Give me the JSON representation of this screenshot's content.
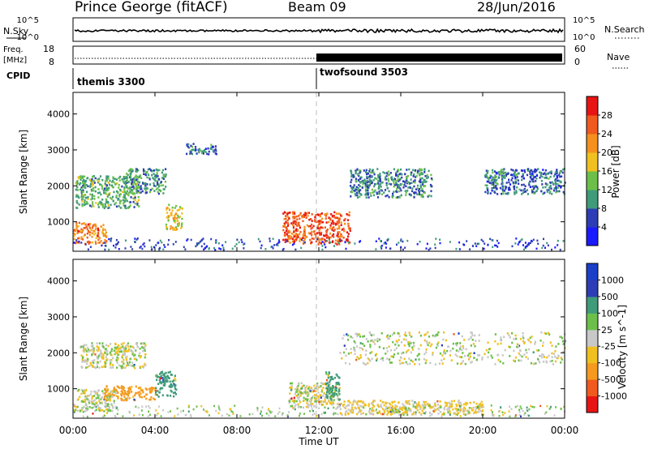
{
  "header": {
    "station": "Prince George (fitACF)",
    "beam": "Beam 09",
    "date": "28/Jun/2016"
  },
  "top_panel": {
    "left_label": "N.Sky",
    "right_label": "N.Search",
    "left_ticks": [
      "10^5",
      "10^0"
    ],
    "right_ticks": [
      "10^5",
      "10^0"
    ]
  },
  "freq_panel": {
    "left_label_1": "Freq.",
    "left_label_2": "[MHz]",
    "right_label": "Nave",
    "left_ticks": [
      "18",
      "8"
    ],
    "right_ticks": [
      "60",
      "0"
    ]
  },
  "cpid": {
    "label": "CPID",
    "segments": [
      {
        "start_hour": 0,
        "name": "themis 3300"
      },
      {
        "start_hour": 12,
        "name": "twofsound 3503"
      }
    ]
  },
  "colors": {
    "power": [
      "#1a1aff",
      "#2d3db5",
      "#3f9b7a",
      "#6cc04a",
      "#f0c020",
      "#f5901e",
      "#f05a1e",
      "#e81414"
    ],
    "velocity": [
      "#e81414",
      "#f05a1e",
      "#f59a1e",
      "#f0c020",
      "#c8c8c8",
      "#6cc04a",
      "#3f9b7a",
      "#2d3db5",
      "#1a3fc8"
    ]
  },
  "chart_data": [
    {
      "type": "heatmap",
      "title": "",
      "xlabel": "",
      "ylabel": "Slant Range [km]",
      "x_ticks": [
        "00:00",
        "04:00",
        "08:00",
        "12:00",
        "16:00",
        "20:00",
        "00:00"
      ],
      "xlim": [
        0,
        24
      ],
      "ylim": [
        180,
        4600
      ],
      "y_ticks": [
        1000,
        2000,
        3000,
        4000
      ],
      "colorbar": {
        "label": "Power [dB]",
        "ticks": [
          "28",
          "24",
          "20",
          "16",
          "12",
          "8",
          "4"
        ],
        "range": [
          0,
          32
        ]
      },
      "echo_regions": [
        {
          "t0": 0.0,
          "t1": 1.6,
          "r0": 400,
          "r1": 1000,
          "level": 24
        },
        {
          "t0": 0.1,
          "t1": 3.2,
          "r0": 1400,
          "r1": 2300,
          "level": 12
        },
        {
          "t0": 2.5,
          "t1": 4.5,
          "r0": 1800,
          "r1": 2500,
          "level": 10
        },
        {
          "t0": 4.5,
          "t1": 5.3,
          "r0": 800,
          "r1": 1500,
          "level": 18
        },
        {
          "t0": 5.5,
          "t1": 7.0,
          "r0": 2900,
          "r1": 3200,
          "level": 8
        },
        {
          "t0": 10.2,
          "t1": 13.5,
          "r0": 400,
          "r1": 1300,
          "level": 26
        },
        {
          "t0": 13.5,
          "t1": 17.5,
          "r0": 1700,
          "r1": 2500,
          "level": 9
        },
        {
          "t0": 20.0,
          "t1": 24.0,
          "r0": 1800,
          "r1": 2500,
          "level": 8
        }
      ]
    },
    {
      "type": "heatmap",
      "title": "",
      "xlabel": "Time UT",
      "ylabel": "Slant Range [km]",
      "x_ticks": [
        "00:00",
        "04:00",
        "08:00",
        "12:00",
        "16:00",
        "20:00",
        "00:00"
      ],
      "xlim": [
        0,
        24
      ],
      "ylim": [
        180,
        4600
      ],
      "y_ticks": [
        1000,
        2000,
        3000,
        4000
      ],
      "colorbar": {
        "label": "Velocity [m s^-1]",
        "ticks": [
          "1000",
          "500",
          "100",
          "25",
          "-25",
          "-100",
          "-500",
          "-1000"
        ],
        "range": [
          -1000,
          1000
        ]
      },
      "echo_regions": [
        {
          "t0": 0.0,
          "t1": 2.0,
          "r0": 400,
          "r1": 1000,
          "velocity": 0
        },
        {
          "t0": 0.3,
          "t1": 3.5,
          "r0": 1600,
          "r1": 2300,
          "velocity": 0
        },
        {
          "t0": 1.5,
          "t1": 4.0,
          "r0": 700,
          "r1": 1100,
          "velocity": -150
        },
        {
          "t0": 4.0,
          "t1": 5.0,
          "r0": 800,
          "r1": 1500,
          "velocity": 200
        },
        {
          "t0": 10.5,
          "t1": 13.0,
          "r0": 500,
          "r1": 1200,
          "velocity": 0
        },
        {
          "t0": 12.3,
          "t1": 13.0,
          "r0": 700,
          "r1": 1500,
          "velocity": 150
        },
        {
          "t0": 13.0,
          "t1": 24.0,
          "r0": 1700,
          "r1": 2600,
          "velocity": 0
        },
        {
          "t0": 13.0,
          "t1": 20.0,
          "r0": 300,
          "r1": 700,
          "velocity": -40
        }
      ]
    }
  ]
}
